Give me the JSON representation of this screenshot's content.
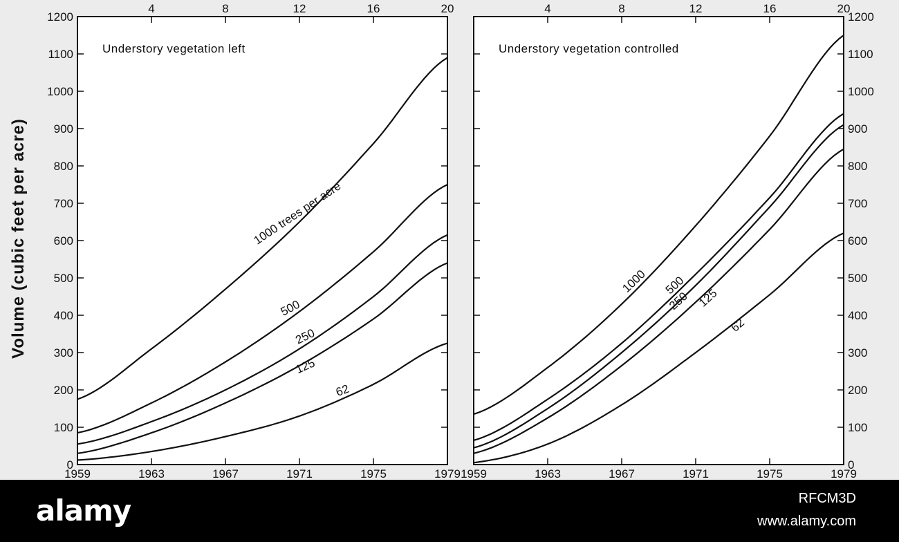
{
  "figure": {
    "ylabel": "Volume (cubic feet per acre)"
  },
  "chart_data": [
    {
      "type": "line",
      "title": "Understory vegetation left",
      "ylabel": "Volume (cubic feet per acre)",
      "x_bottom_ticks": [
        "1959",
        "1963",
        "1967",
        "1971",
        "1975",
        "1979"
      ],
      "x_top_ticks": [
        "4",
        "8",
        "12",
        "16",
        "20"
      ],
      "y_ticks": [
        "0",
        "100",
        "200",
        "300",
        "400",
        "500",
        "600",
        "700",
        "800",
        "900",
        "1000",
        "1100",
        "1200"
      ],
      "xlim": [
        1959,
        1979
      ],
      "ylim": [
        0,
        1200
      ],
      "x": [
        1959,
        1963,
        1967,
        1971,
        1975,
        1979
      ],
      "series": [
        {
          "name": "1000",
          "label": "1000 trees per acre",
          "values": [
            175,
            310,
            470,
            650,
            860,
            1090
          ]
        },
        {
          "name": "500",
          "label": "500",
          "values": [
            85,
            165,
            275,
            410,
            570,
            750
          ]
        },
        {
          "name": "250",
          "label": "250",
          "values": [
            55,
            115,
            200,
            310,
            450,
            615
          ]
        },
        {
          "name": "125",
          "label": "125",
          "values": [
            30,
            85,
            165,
            265,
            390,
            540
          ]
        },
        {
          "name": "62",
          "label": "62",
          "values": [
            12,
            35,
            75,
            130,
            215,
            325
          ]
        }
      ]
    },
    {
      "type": "line",
      "title": "Understory vegetation controlled",
      "ylabel": "Volume (cubic feet per acre)",
      "x_bottom_ticks": [
        "1959",
        "1963",
        "1967",
        "1971",
        "1975",
        "1979"
      ],
      "x_top_ticks": [
        "4",
        "8",
        "12",
        "16",
        "20"
      ],
      "y_ticks": [
        "0",
        "100",
        "200",
        "300",
        "400",
        "500",
        "600",
        "700",
        "800",
        "900",
        "1000",
        "1100",
        "1200"
      ],
      "xlim": [
        1959,
        1979
      ],
      "ylim": [
        0,
        1200
      ],
      "x": [
        1959,
        1963,
        1967,
        1971,
        1975,
        1979
      ],
      "series": [
        {
          "name": "1000",
          "label": "1000",
          "values": [
            135,
            260,
            430,
            640,
            880,
            1150
          ]
        },
        {
          "name": "500",
          "label": "500",
          "values": [
            65,
            175,
            325,
            510,
            715,
            940
          ]
        },
        {
          "name": "250",
          "label": "250",
          "values": [
            45,
            150,
            300,
            480,
            690,
            910
          ]
        },
        {
          "name": "125",
          "label": "125",
          "values": [
            30,
            125,
            265,
            435,
            630,
            845
          ]
        },
        {
          "name": "62",
          "label": "62",
          "values": [
            5,
            55,
            160,
            300,
            455,
            620
          ]
        }
      ]
    }
  ],
  "footer": {
    "logo": "alamy",
    "image_id": "RFCM3D",
    "site": "www.alamy.com"
  }
}
